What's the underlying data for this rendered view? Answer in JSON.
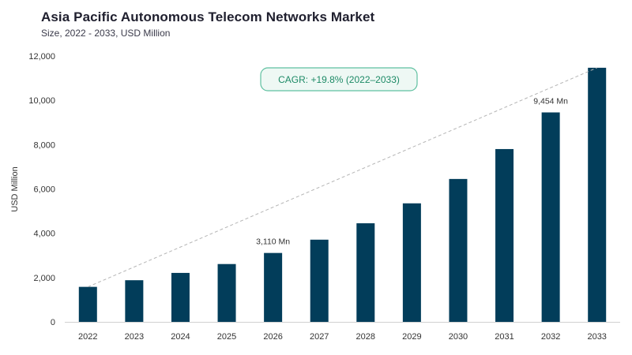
{
  "header": {
    "title": "Asia Pacific Autonomous Telecom Networks Market",
    "subtitle": "Size, 2022 - 2033, USD Million"
  },
  "colors": {
    "bar": "#023d5a",
    "trend": "#b5b5b5",
    "cagr_border": "#5fc0a0",
    "cagr_fill": "#eef8f4",
    "cagr_text": "#1d8a66"
  },
  "chart_data": {
    "type": "bar",
    "title": "Asia Pacific Autonomous Telecom Networks Market",
    "subtitle": "Size, 2022 - 2033, USD Million",
    "xlabel": "",
    "ylabel": "USD Million",
    "ylim": [
      0,
      12000
    ],
    "yticks": [
      0,
      2000,
      4000,
      6000,
      8000,
      10000,
      12000
    ],
    "ytick_labels": [
      "0",
      "2,000",
      "4,000",
      "6,000",
      "8,000",
      "10,000",
      "12,000"
    ],
    "grid": false,
    "categories": [
      "2022",
      "2023",
      "2024",
      "2025",
      "2026",
      "2027",
      "2028",
      "2029",
      "2030",
      "2031",
      "2032",
      "2033"
    ],
    "values": [
      1580,
      1880,
      2210,
      2610,
      3110,
      3710,
      4450,
      5350,
      6450,
      7800,
      9454,
      11470
    ],
    "data_labels": [
      {
        "category": "2026",
        "text": "3,110 Mn"
      },
      {
        "category": "2032",
        "text": "9,454 Mn"
      }
    ],
    "annotations": [
      {
        "type": "badge",
        "text": "CAGR: +19.8% (2022–2033)"
      }
    ],
    "trendline": {
      "style": "dashed",
      "from": "2022",
      "to": "2033"
    }
  }
}
